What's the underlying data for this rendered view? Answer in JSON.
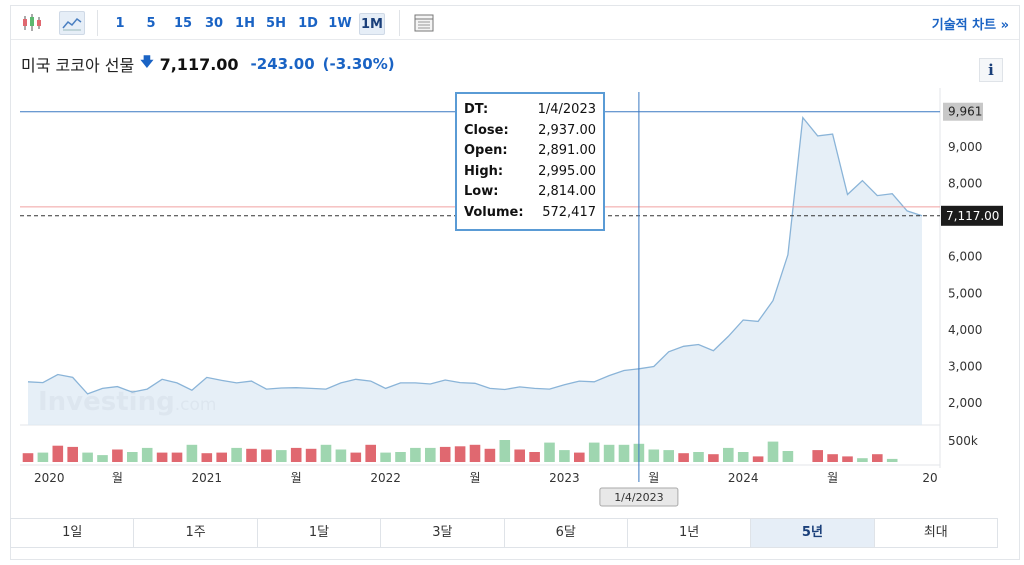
{
  "toolbar": {
    "timeframes": [
      "1",
      "5",
      "15",
      "30",
      "1H",
      "5H",
      "1D",
      "1W",
      "1M"
    ],
    "active_timeframe": "1M",
    "tech_link": "기술적 차트 »"
  },
  "header": {
    "title": "미국 코코아 선물",
    "arrow": "🡇",
    "price": "7,117.00",
    "change": "-243.00",
    "change_pct": "(-3.30%)",
    "info": "i"
  },
  "tooltip": {
    "rows": [
      {
        "k": "DT:",
        "v": "1/4/2023"
      },
      {
        "k": "Close:",
        "v": "2,937.00"
      },
      {
        "k": "Open:",
        "v": "2,891.00"
      },
      {
        "k": "High:",
        "v": "2,995.00"
      },
      {
        "k": "Low:",
        "v": "2,814.00"
      },
      {
        "k": "Volume:",
        "v": "572,417"
      }
    ]
  },
  "ranges": [
    "1일",
    "1주",
    "1달",
    "3달",
    "6달",
    "1년",
    "5년",
    "최대"
  ],
  "active_range": "5년",
  "colors": {
    "line": "#8ab4d8",
    "area": "#dde9f4",
    "vol_up": "#9fd6b0",
    "vol_down": "#e06870",
    "crosshair": "#3a78c2",
    "prev_close": "#f0a0a0"
  },
  "chart_data": {
    "type": "area",
    "title": "미국 코코아 선물",
    "y_ticks": [
      "2,000",
      "3,000",
      "4,000",
      "5,000",
      "6,000",
      "8,000",
      "9,000"
    ],
    "y_tick_values": [
      2000,
      3000,
      4000,
      5000,
      6000,
      8000,
      9000
    ],
    "ylim": [
      1400,
      10500
    ],
    "x_labels": [
      "2020",
      "월",
      "2021",
      "월",
      "2022",
      "월",
      "2023",
      "월",
      "2024",
      "월",
      "20"
    ],
    "x_label_positions": [
      0,
      6,
      12,
      18,
      24,
      30,
      36,
      42,
      48,
      54,
      60
    ],
    "price_series": [
      2580,
      2560,
      2780,
      2700,
      2250,
      2400,
      2450,
      2300,
      2380,
      2650,
      2550,
      2350,
      2700,
      2620,
      2550,
      2600,
      2380,
      2410,
      2420,
      2400,
      2380,
      2550,
      2650,
      2600,
      2400,
      2550,
      2550,
      2520,
      2630,
      2560,
      2540,
      2400,
      2370,
      2440,
      2400,
      2380,
      2500,
      2600,
      2580,
      2750,
      2890,
      2937,
      3000,
      3400,
      3550,
      3600,
      3430,
      3820,
      4270,
      4230,
      4800,
      6050,
      9800,
      9300,
      9350,
      7700,
      8080,
      7670,
      7720,
      7250,
      7117
    ],
    "volume_series": [
      {
        "v": 0.28,
        "d": 1
      },
      {
        "v": 0.3,
        "d": 0
      },
      {
        "v": 0.52,
        "d": 1
      },
      {
        "v": 0.48,
        "d": 1
      },
      {
        "v": 0.3,
        "d": 0
      },
      {
        "v": 0.22,
        "d": 0
      },
      {
        "v": 0.4,
        "d": 1
      },
      {
        "v": 0.32,
        "d": 0
      },
      {
        "v": 0.45,
        "d": 0
      },
      {
        "v": 0.3,
        "d": 1
      },
      {
        "v": 0.3,
        "d": 1
      },
      {
        "v": 0.55,
        "d": 0
      },
      {
        "v": 0.28,
        "d": 1
      },
      {
        "v": 0.3,
        "d": 1
      },
      {
        "v": 0.45,
        "d": 0
      },
      {
        "v": 0.42,
        "d": 1
      },
      {
        "v": 0.4,
        "d": 1
      },
      {
        "v": 0.38,
        "d": 0
      },
      {
        "v": 0.45,
        "d": 1
      },
      {
        "v": 0.42,
        "d": 1
      },
      {
        "v": 0.55,
        "d": 0
      },
      {
        "v": 0.4,
        "d": 0
      },
      {
        "v": 0.3,
        "d": 1
      },
      {
        "v": 0.55,
        "d": 1
      },
      {
        "v": 0.3,
        "d": 0
      },
      {
        "v": 0.32,
        "d": 0
      },
      {
        "v": 0.45,
        "d": 0
      },
      {
        "v": 0.45,
        "d": 0
      },
      {
        "v": 0.48,
        "d": 1
      },
      {
        "v": 0.5,
        "d": 1
      },
      {
        "v": 0.55,
        "d": 1
      },
      {
        "v": 0.42,
        "d": 1
      },
      {
        "v": 0.7,
        "d": 0
      },
      {
        "v": 0.4,
        "d": 1
      },
      {
        "v": 0.32,
        "d": 1
      },
      {
        "v": 0.62,
        "d": 0
      },
      {
        "v": 0.38,
        "d": 0
      },
      {
        "v": 0.3,
        "d": 1
      },
      {
        "v": 0.62,
        "d": 0
      },
      {
        "v": 0.55,
        "d": 0
      },
      {
        "v": 0.55,
        "d": 0
      },
      {
        "v": 0.58,
        "d": 0
      },
      {
        "v": 0.4,
        "d": 0
      },
      {
        "v": 0.38,
        "d": 0
      },
      {
        "v": 0.28,
        "d": 1
      },
      {
        "v": 0.32,
        "d": 0
      },
      {
        "v": 0.25,
        "d": 1
      },
      {
        "v": 0.45,
        "d": 0
      },
      {
        "v": 0.32,
        "d": 0
      },
      {
        "v": 0.18,
        "d": 1
      },
      {
        "v": 0.65,
        "d": 0
      },
      {
        "v": 0.35,
        "d": 0
      },
      {
        "v": 0.0,
        "d": 0
      },
      {
        "v": 0.38,
        "d": 1
      },
      {
        "v": 0.25,
        "d": 1
      },
      {
        "v": 0.18,
        "d": 1
      },
      {
        "v": 0.12,
        "d": 0
      },
      {
        "v": 0.25,
        "d": 1
      },
      {
        "v": 0.1,
        "d": 0
      },
      {
        "v": 0.0,
        "d": 0
      },
      {
        "v": 0.0,
        "d": 0
      }
    ],
    "volume_axis_label": "500k",
    "high_line_label": "9,961",
    "high_line_value": 9961,
    "last_price_label": "7,117.00",
    "last_price_value": 7117,
    "prev_close_value": 7360,
    "crosshair_index": 41,
    "crosshair_label": "1/4/2023",
    "watermark": "Investing",
    "watermark_suffix": ".com"
  }
}
